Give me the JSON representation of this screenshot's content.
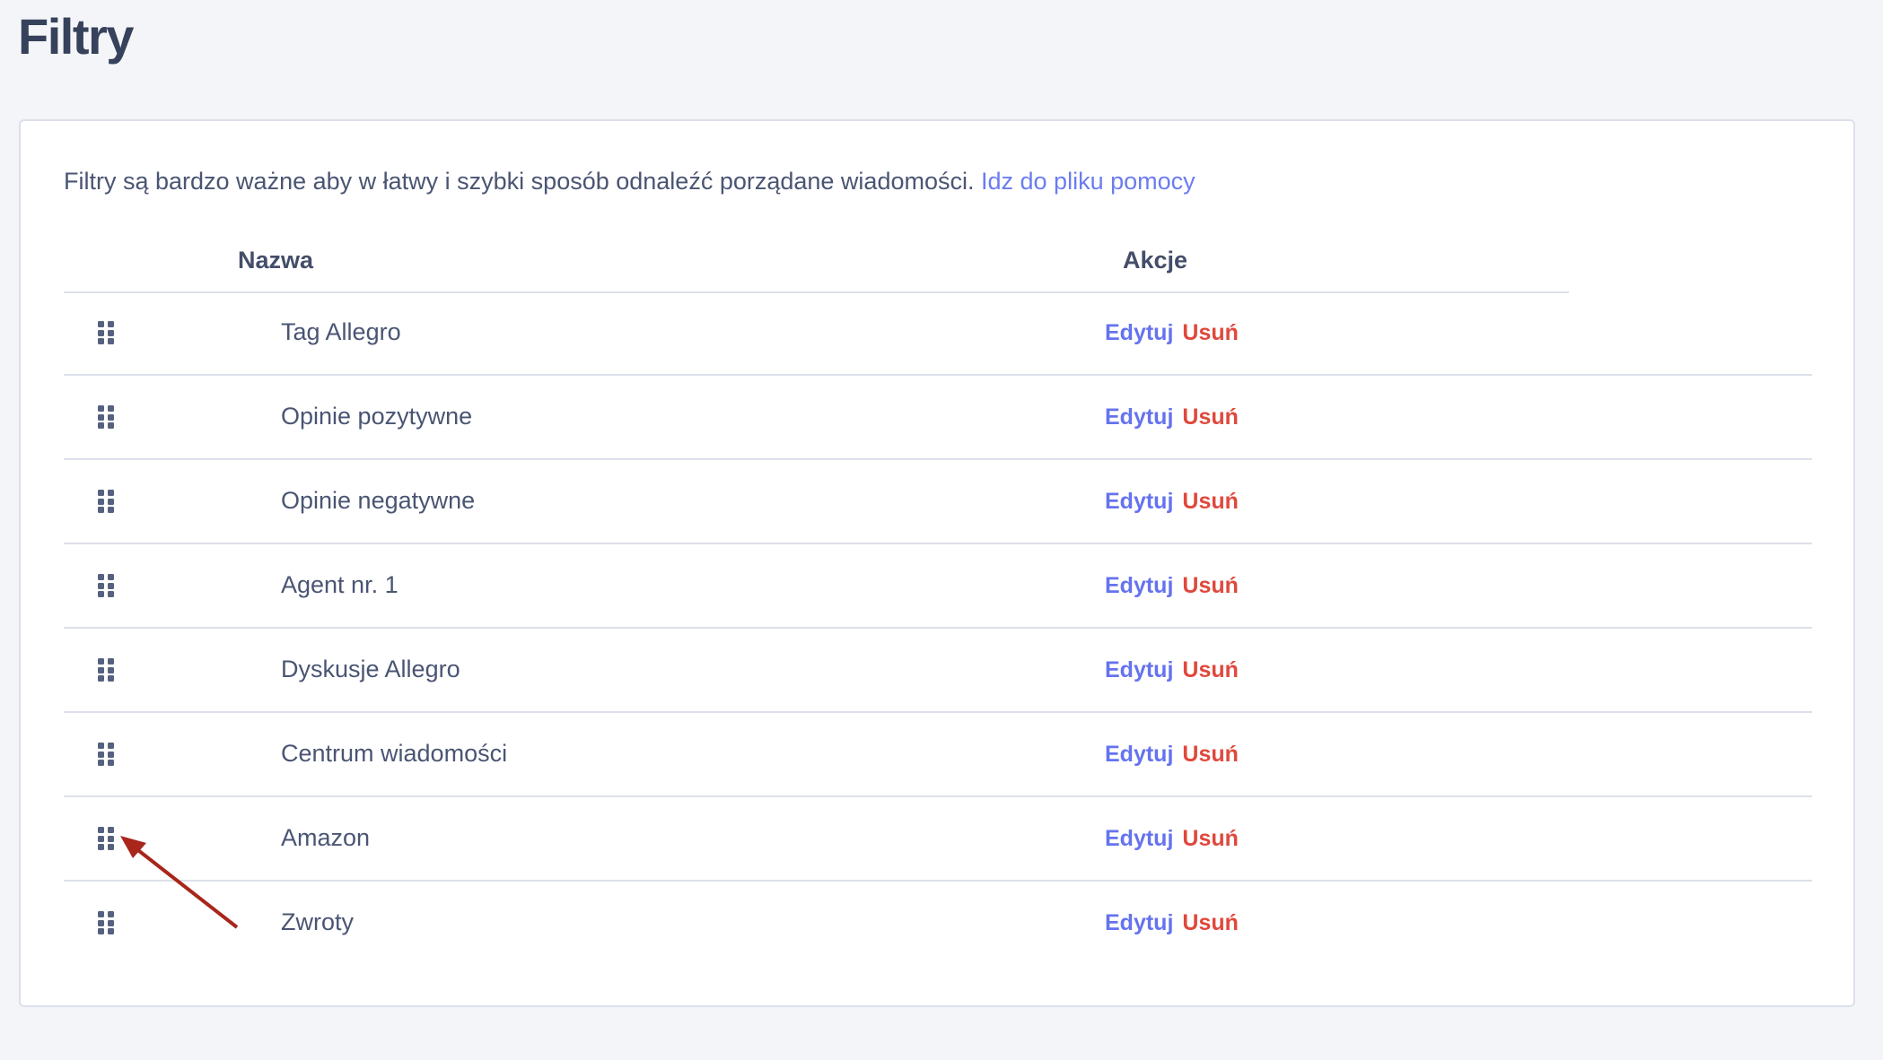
{
  "page": {
    "title": "Filtry"
  },
  "intro": {
    "text": "Filtry są bardzo ważne aby w łatwy i szybki sposób odnaleźć porządane wiadomości.",
    "help_link": "Idz do pliku pomocy"
  },
  "table": {
    "headers": {
      "name": "Nazwa",
      "actions": "Akcje"
    },
    "rows": [
      {
        "name": "Tag Allegro",
        "edit": "Edytuj",
        "delete": "Usuń"
      },
      {
        "name": "Opinie pozytywne",
        "edit": "Edytuj",
        "delete": "Usuń"
      },
      {
        "name": "Opinie negatywne",
        "edit": "Edytuj",
        "delete": "Usuń"
      },
      {
        "name": "Agent nr. 1",
        "edit": "Edytuj",
        "delete": "Usuń"
      },
      {
        "name": "Dyskusje Allegro",
        "edit": "Edytuj",
        "delete": "Usuń"
      },
      {
        "name": "Centrum wiadomości",
        "edit": "Edytuj",
        "delete": "Usuń"
      },
      {
        "name": "Amazon",
        "edit": "Edytuj",
        "delete": "Usuń"
      },
      {
        "name": "Zwroty",
        "edit": "Edytuj",
        "delete": "Usuń"
      }
    ]
  },
  "colors": {
    "link": "#6573ee",
    "delete": "#e0483c",
    "annotation_arrow": "#a8261a"
  },
  "icons": {
    "drag_handle": "grip-vertical-icon",
    "annotation": "arrow-icon"
  }
}
